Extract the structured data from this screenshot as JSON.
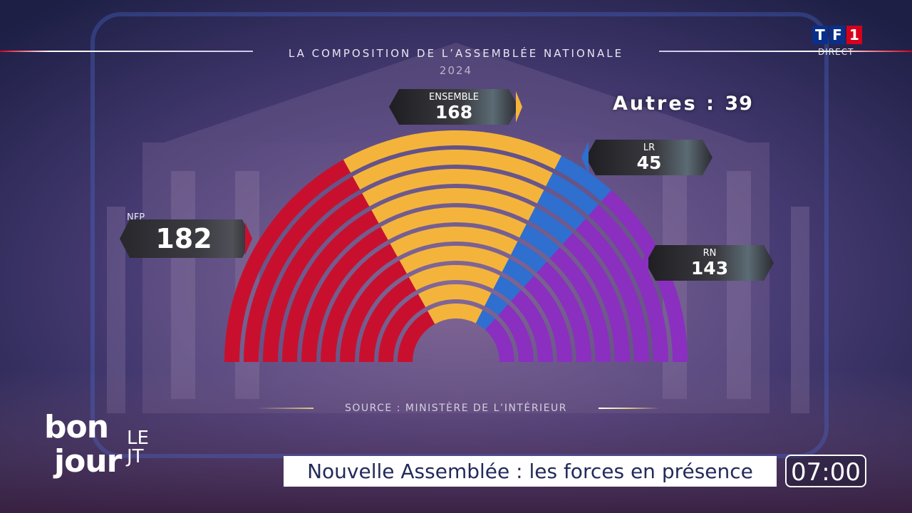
{
  "broadcast": {
    "channel_logo_letters": [
      "T",
      "F",
      "1"
    ],
    "channel_logo_colors": [
      "#0a2f8a",
      "#0a2f8a",
      "#d6001c"
    ],
    "live_label": "DIRECT",
    "show_name": [
      "bon",
      "jour",
      "LE JT"
    ],
    "headline": "Nouvelle Assemblée : les forces en présence",
    "clock": "07:00"
  },
  "chart_data": {
    "type": "hemicycle",
    "title": "LA COMPOSITION DE L’ASSEMBLÉE NATIONALE",
    "subtitle": "2024",
    "others_label": "Autres :",
    "others_value": "39",
    "source": "SOURCE : MINISTÈRE DE L’INTÉRIEUR",
    "rows": 10,
    "series": [
      {
        "name": "NFP",
        "seats": 182,
        "color": "#c8102e"
      },
      {
        "name": "ENSEMBLE",
        "seats": 168,
        "color": "#f4b43c"
      },
      {
        "name": "LR",
        "seats": 45,
        "color": "#2e6fd0"
      },
      {
        "name": "RN",
        "seats": 143,
        "color": "#8a2fbf"
      }
    ]
  }
}
